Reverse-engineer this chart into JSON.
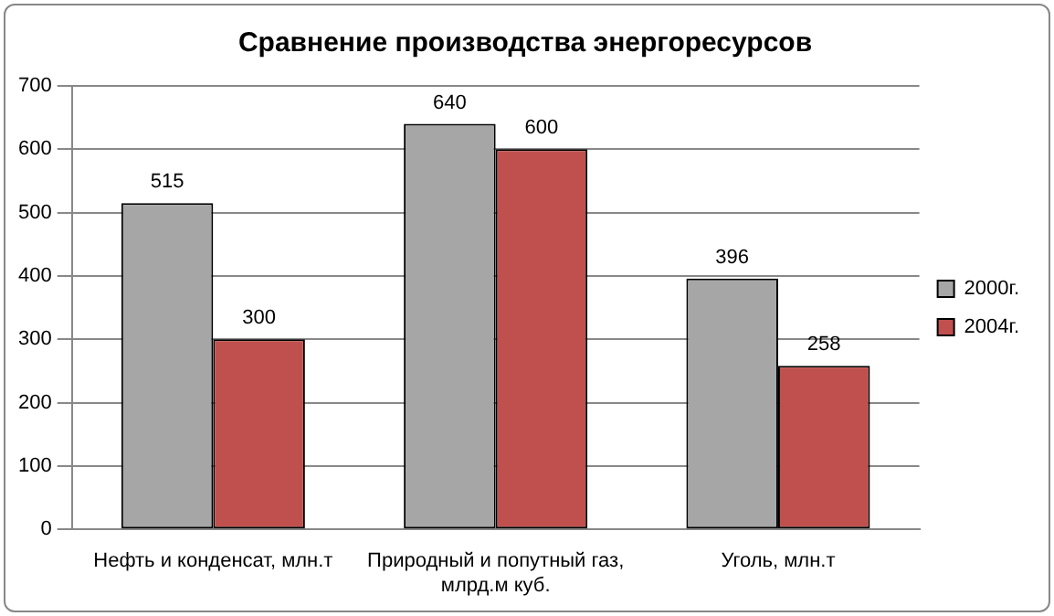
{
  "chart_data": {
    "type": "bar",
    "title": "Сравнение производства энергоресурсов",
    "categories": [
      "Нефть и конденсат, млн.т",
      "Природный и попутный газ, млрд.м куб.",
      "Уголь, млн.т"
    ],
    "series": [
      {
        "name": "2000г.",
        "color": "#a6a6a6",
        "values": [
          515,
          640,
          396
        ]
      },
      {
        "name": "2004г.",
        "color": "#c0504d",
        "values": [
          300,
          600,
          258
        ]
      }
    ],
    "ylim": [
      0,
      700
    ],
    "yticks": [
      0,
      100,
      200,
      300,
      400,
      500,
      600,
      700
    ],
    "grid": "y",
    "legend": "right",
    "data_labels": true
  }
}
